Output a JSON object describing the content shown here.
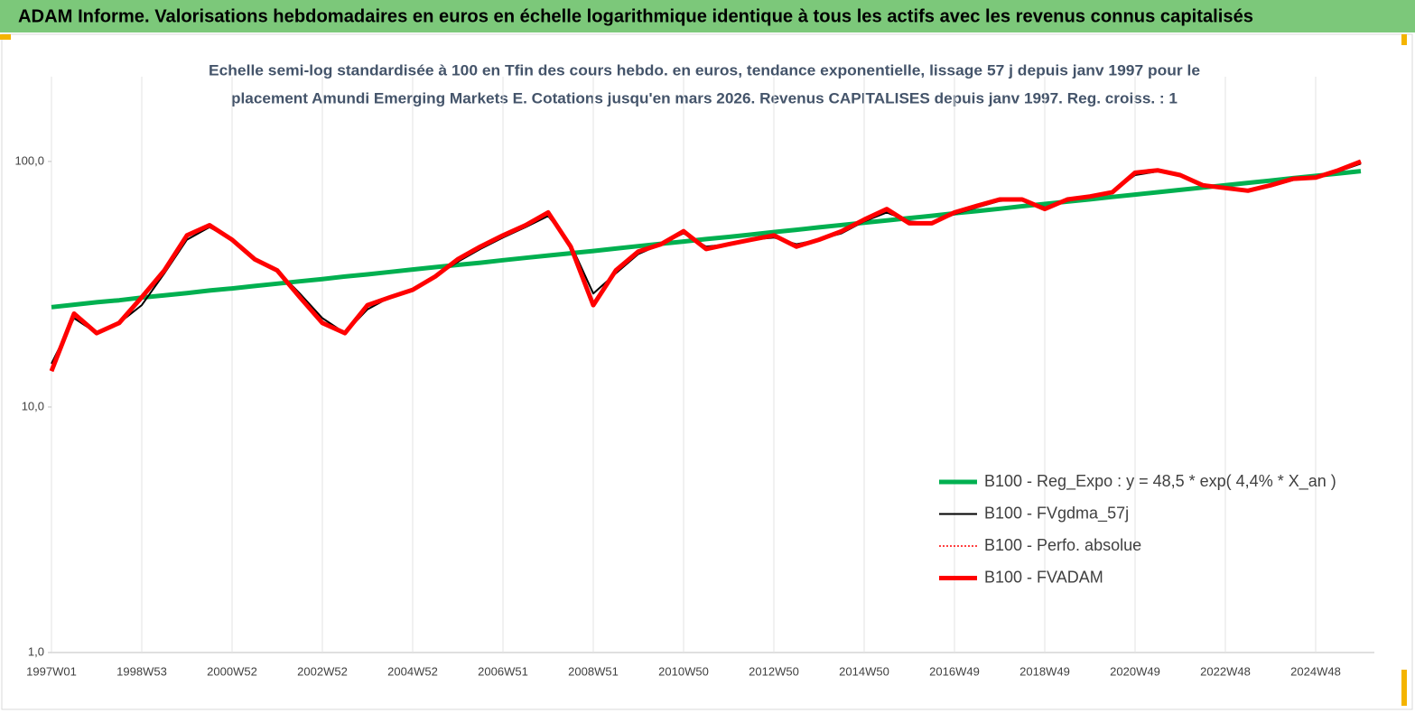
{
  "chart_data": {
    "type": "line",
    "banner": "ADAM Informe. Valorisations hebdomadaires en euros en échelle logarithmique identique à tous les actifs avec les revenus connus capitalisés",
    "subtitle": [
      "Echelle semi-log standardisée à 100 en Tfin des cours hebdo. en euros, tendance exponentielle, lissage 57 j depuis janv 1997 pour le",
      "placement Amundi Emerging Markets E. Cotations jusqu'en mars 2026. Revenus CAPITALISES depuis janv 1997. Reg. croiss. : 1"
    ],
    "categories": [
      "1997W01",
      null,
      null,
      null,
      "1998W53",
      null,
      null,
      null,
      "2000W52",
      null,
      null,
      null,
      "2002W52",
      null,
      null,
      null,
      "2004W52",
      null,
      null,
      null,
      "2006W51",
      null,
      null,
      null,
      "2008W51",
      null,
      null,
      null,
      "2010W50",
      null,
      null,
      null,
      "2012W50",
      null,
      null,
      null,
      "2014W50",
      null,
      null,
      null,
      "2016W49",
      null,
      null,
      null,
      "2018W49",
      null,
      null,
      null,
      "2020W49",
      null,
      null,
      null,
      "2022W48",
      null,
      null,
      null,
      "2024W48",
      null,
      null
    ],
    "log_scale": true,
    "ylim": [
      1,
      200
    ],
    "yticks": [
      {
        "value": 1,
        "label": "1,0"
      },
      {
        "value": 10,
        "label": "10,0"
      },
      {
        "value": 100,
        "label": "100,0"
      }
    ],
    "grid": true,
    "series": [
      {
        "name": "B100 - Reg_Expo : y = 48,5 * exp( 4,4% *  X_an )",
        "color": "#00b050",
        "style": "thick",
        "values": [
          25.5,
          26.1,
          26.7,
          27.2,
          27.9,
          28.5,
          29.1,
          29.8,
          30.4,
          31.1,
          31.8,
          32.5,
          33.2,
          34.0,
          34.7,
          35.5,
          36.3,
          37.1,
          37.9,
          38.7,
          39.6,
          40.5,
          41.4,
          42.3,
          43.2,
          44.2,
          45.2,
          46.2,
          47.2,
          48.3,
          49.3,
          50.4,
          51.6,
          52.7,
          53.9,
          55.1,
          56.3,
          57.5,
          58.8,
          60.1,
          61.5,
          62.8,
          64.2,
          65.7,
          67.1,
          68.6,
          70.1,
          71.7,
          73.3,
          74.9,
          76.6,
          78.3,
          80.0,
          81.8,
          83.6,
          85.5,
          87.4,
          89.3,
          91.3
        ]
      },
      {
        "name": "B100 - FVgdma_57j",
        "color": "#000000",
        "style": "thin",
        "values": [
          15,
          23,
          20,
          22,
          26,
          35,
          48,
          54,
          48,
          40,
          36,
          29,
          23,
          20,
          25,
          28,
          30,
          34,
          39,
          44,
          49,
          54,
          60,
          46,
          29,
          35,
          42,
          46,
          51,
          45,
          46,
          48,
          49,
          46,
          48,
          51,
          57,
          62,
          57,
          56,
          61,
          65,
          69,
          70,
          65,
          69,
          72,
          75,
          88,
          91,
          88,
          81,
          78,
          76,
          79,
          84,
          86,
          91,
          98
        ]
      },
      {
        "name": "B100 - Perfo. absolue",
        "color": "#ff0000",
        "style": "dotted",
        "values": [
          14,
          24,
          20,
          22,
          28,
          36,
          50,
          55,
          48,
          40,
          36,
          28,
          22,
          20,
          26,
          28,
          30,
          34,
          40,
          45,
          50,
          55,
          62,
          45,
          26,
          36,
          43,
          46,
          52,
          44,
          46,
          48,
          50,
          45,
          48,
          52,
          58,
          64,
          56,
          56,
          62,
          66,
          70,
          70,
          64,
          70,
          72,
          75,
          90,
          92,
          88,
          80,
          78,
          76,
          80,
          85,
          86,
          92,
          100
        ]
      },
      {
        "name": "B100 - FVADAM",
        "color": "#ff0000",
        "style": "thick",
        "values": [
          14,
          24,
          20,
          22,
          28,
          36,
          50,
          55,
          48,
          40,
          36,
          28,
          22,
          20,
          26,
          28,
          30,
          34,
          40,
          45,
          50,
          55,
          62,
          45,
          26,
          36,
          43,
          46,
          52,
          44,
          46,
          48,
          50,
          45,
          48,
          52,
          58,
          64,
          56,
          56,
          62,
          66,
          70,
          70,
          64,
          70,
          72,
          75,
          90,
          92,
          88,
          80,
          78,
          76,
          80,
          85,
          86,
          92,
          100
        ]
      }
    ]
  }
}
